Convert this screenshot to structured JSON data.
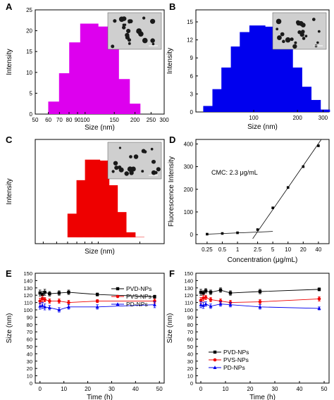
{
  "chart_data": [
    {
      "panel": "A",
      "type": "bar",
      "color": "#dd00ee",
      "xlabel": "Size (nm)",
      "ylabel": "Intensity",
      "x_scale": "log",
      "xlim": [
        50,
        300
      ],
      "ylim": [
        0,
        25
      ],
      "x_ticks": [
        "50",
        "60",
        "70",
        "80",
        "90",
        "100",
        "150",
        "200",
        "250",
        "300"
      ],
      "y_ticks": [
        "0",
        "5",
        "10",
        "15",
        "20",
        "25"
      ],
      "x": [
        68,
        79,
        91,
        106,
        122,
        141,
        164,
        190
      ],
      "values": [
        3.0,
        9.8,
        17.2,
        21.7,
        21.0,
        15.8,
        8.4,
        2.5
      ]
    },
    {
      "panel": "B",
      "type": "bar",
      "color": "#0000ee",
      "xlabel": "Size (nm)",
      "ylabel": "Intensity",
      "x_scale": "log",
      "xlim": [
        40,
        330
      ],
      "ylim": [
        0,
        17
      ],
      "x_ticks": [
        "100",
        "200",
        "300"
      ],
      "y_ticks": [
        "0",
        "3",
        "6",
        "9",
        "12",
        "15"
      ],
      "x": [
        51,
        59,
        68,
        79,
        91,
        106,
        122,
        141,
        164,
        190,
        220,
        255,
        295
      ],
      "values": [
        1.0,
        3.8,
        7.4,
        10.9,
        13.3,
        14.4,
        14.2,
        12.8,
        10.5,
        7.4,
        4.2,
        2.0,
        0.4
      ]
    },
    {
      "panel": "C",
      "type": "bar",
      "color": "#ee0000",
      "xlabel": "Size (nm)",
      "ylabel": "Intensity",
      "x_scale": "log",
      "xlim": [
        35,
        300
      ],
      "ylim": [
        -2,
        31
      ],
      "x": [
        68,
        79,
        91,
        106,
        122,
        141,
        164,
        190
      ],
      "values": [
        7.5,
        18.1,
        24.6,
        24.3,
        16.5,
        8.0,
        1.6,
        0.1
      ]
    },
    {
      "panel": "D",
      "type": "scatter",
      "xlabel": "Concentration (μg/mL)",
      "ylabel": "Fluorescence Intensity",
      "x_scale": "log",
      "xlim": [
        0.15,
        65
      ],
      "ylim": [
        -40,
        420
      ],
      "x_ticks": [
        "0.25",
        "0.5",
        "1",
        "2.5",
        "5",
        "10",
        "20",
        "40"
      ],
      "y_ticks": [
        "0",
        "100",
        "200",
        "300",
        "400"
      ],
      "annotation": "CMC: 2.3 μg/mL",
      "x": [
        0.25,
        0.5,
        1,
        2.5,
        5,
        10,
        20,
        40
      ],
      "values": [
        2,
        5,
        8,
        22,
        118,
        208,
        300,
        392
      ],
      "fit_low": {
        "x": [
          0.25,
          5
        ],
        "y": [
          2,
          14
        ]
      },
      "fit_high": {
        "x": [
          2.0,
          45
        ],
        "y": [
          -18,
          418
        ]
      }
    },
    {
      "panel": "E",
      "type": "line",
      "xlabel": "Time (h)",
      "ylabel": "Size (nm)",
      "xlim": [
        -2,
        52
      ],
      "ylim": [
        0,
        150
      ],
      "x_ticks": [
        "0",
        "10",
        "20",
        "30",
        "40",
        "50"
      ],
      "y_ticks": [
        "0",
        "10",
        "20",
        "30",
        "40",
        "50",
        "60",
        "70",
        "80",
        "90",
        "100",
        "110",
        "120",
        "130",
        "140",
        "150"
      ],
      "legend_position": "top-right",
      "series": [
        {
          "name": "PVD-NPs",
          "color": "#000000",
          "marker": "square",
          "x": [
            0,
            1,
            2,
            4,
            8,
            12,
            24,
            48
          ],
          "y": [
            123,
            121,
            124,
            122,
            123,
            124,
            121,
            118
          ],
          "err": [
            4,
            4,
            4,
            3,
            3,
            3,
            2,
            2
          ]
        },
        {
          "name": "PVS-NPs",
          "color": "#ee0000",
          "marker": "circle",
          "x": [
            0,
            1,
            2,
            4,
            8,
            12,
            24,
            48
          ],
          "y": [
            112,
            115,
            114,
            112,
            112,
            110,
            112,
            112
          ],
          "err": [
            4,
            4,
            3,
            3,
            3,
            3,
            2,
            3
          ]
        },
        {
          "name": "PD-NPs",
          "color": "#0000ee",
          "marker": "triangle",
          "x": [
            0,
            1,
            2,
            4,
            8,
            12,
            24,
            48
          ],
          "y": [
            105,
            106,
            104,
            103,
            100,
            104,
            104,
            107
          ],
          "err": [
            4,
            4,
            4,
            3,
            3,
            3,
            3,
            4
          ]
        }
      ]
    },
    {
      "panel": "F",
      "type": "line",
      "xlabel": "Time (h)",
      "ylabel": "Size (nm)",
      "xlim": [
        -2,
        52
      ],
      "ylim": [
        0,
        150
      ],
      "x_ticks": [
        "0",
        "10",
        "20",
        "30",
        "40",
        "50"
      ],
      "y_ticks": [
        "0",
        "10",
        "20",
        "30",
        "40",
        "50",
        "60",
        "70",
        "80",
        "90",
        "100",
        "110",
        "120",
        "130",
        "140",
        "150"
      ],
      "legend_position": "bottom-left",
      "series": [
        {
          "name": "PVD-NPs",
          "color": "#000000",
          "marker": "square",
          "x": [
            0,
            1,
            2,
            4,
            8,
            12,
            24,
            48
          ],
          "y": [
            124,
            123,
            126,
            124,
            127,
            123,
            125,
            128
          ],
          "err": [
            4,
            3,
            3,
            3,
            3,
            3,
            3,
            2
          ]
        },
        {
          "name": "PVS-NPs",
          "color": "#ee0000",
          "marker": "circle",
          "x": [
            0,
            1,
            2,
            4,
            8,
            12,
            24,
            48
          ],
          "y": [
            113,
            116,
            117,
            114,
            112,
            110,
            111,
            115
          ],
          "err": [
            4,
            4,
            3,
            3,
            3,
            3,
            3,
            3
          ]
        },
        {
          "name": "PD-NPs",
          "color": "#0000ee",
          "marker": "triangle",
          "x": [
            0,
            1,
            2,
            4,
            8,
            12,
            24,
            48
          ],
          "y": [
            107,
            106,
            108,
            105,
            108,
            107,
            104,
            102
          ],
          "err": [
            4,
            4,
            3,
            3,
            3,
            3,
            3,
            2
          ]
        }
      ]
    }
  ]
}
